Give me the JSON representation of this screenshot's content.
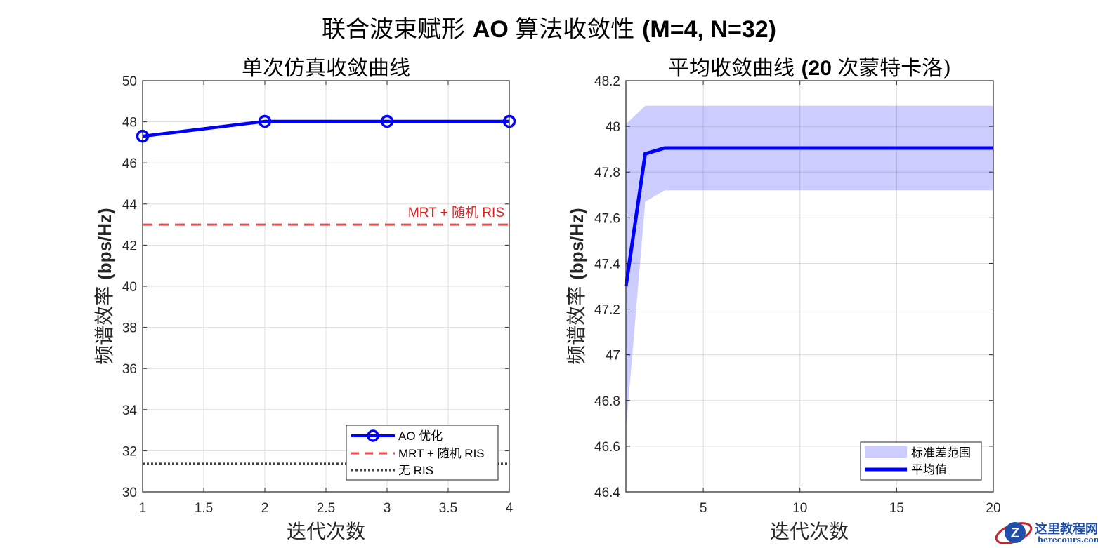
{
  "figure": {
    "title_cjk_prefix": "联合波束赋形 ",
    "title_bold": "AO ",
    "title_cjk_mid": "算法收敛性 ",
    "title_bold_suffix": "(M=4, N=32)"
  },
  "left_plot": {
    "title": "单次仿真收敛曲线",
    "xlabel": "迭代次数",
    "ylabel_cjk": "频谱效率 ",
    "ylabel_unit": "(bps/Hz)",
    "annotation": "MRT + 随机 RIS",
    "xticks": [
      "1",
      "1.5",
      "2",
      "2.5",
      "3",
      "3.5",
      "4"
    ],
    "yticks": [
      "30",
      "32",
      "34",
      "36",
      "38",
      "40",
      "42",
      "44",
      "46",
      "48",
      "50"
    ],
    "legend": {
      "items": [
        {
          "label": "AO 优化"
        },
        {
          "label": "MRT + 随机 RIS"
        },
        {
          "label": "无 RIS"
        }
      ]
    }
  },
  "right_plot": {
    "title_cjk": "平均收敛曲线 ",
    "title_bold": "(20 ",
    "title_cjk2": "次蒙特卡洛)",
    "xlabel": "迭代次数",
    "ylabel_cjk": "频谱效率 ",
    "ylabel_unit": "(bps/Hz)",
    "xticks": [
      "5",
      "10",
      "15",
      "20"
    ],
    "yticks": [
      "46.4",
      "46.6",
      "46.8",
      "47",
      "47.2",
      "47.4",
      "47.6",
      "47.8",
      "48",
      "48.2"
    ],
    "legend": {
      "items": [
        {
          "label": "标准差范围"
        },
        {
          "label": "平均值"
        }
      ]
    }
  },
  "watermark": {
    "name": "这里教程网",
    "url_text": "herecours.com"
  },
  "colors": {
    "ao_line": "#0000ff",
    "mrt_line": "#f04848",
    "no_ris_line": "#404040",
    "band_fill": "#ccccff",
    "mean_line": "#0000ff",
    "grid": "#dfdfdf"
  },
  "chart_data": [
    {
      "type": "line",
      "title": "单次仿真收敛曲线",
      "xlabel": "迭代次数",
      "ylabel": "频谱效率 (bps/Hz)",
      "xlim": [
        1,
        4
      ],
      "ylim": [
        30,
        50
      ],
      "grid": true,
      "legend_position": "lower right",
      "series": [
        {
          "name": "AO 优化",
          "x": [
            1,
            2,
            3,
            4
          ],
          "values": [
            47.3,
            48.02,
            48.02,
            48.02
          ],
          "style": "solid, circle markers"
        },
        {
          "name": "MRT + 随机 RIS",
          "x": [
            1,
            4
          ],
          "values": [
            43.0,
            43.0
          ],
          "style": "dashed"
        },
        {
          "name": "无 RIS",
          "x": [
            1,
            4
          ],
          "values": [
            31.37,
            31.37
          ],
          "style": "dotted"
        }
      ],
      "annotations": [
        "MRT + 随机 RIS"
      ]
    },
    {
      "type": "area",
      "title": "平均收敛曲线 (20 次蒙特卡洛)",
      "xlabel": "迭代次数",
      "ylabel": "频谱效率 (bps/Hz)",
      "xlim": [
        1,
        20
      ],
      "ylim": [
        46.4,
        48.2
      ],
      "grid": true,
      "legend_position": "lower right",
      "x": [
        1,
        2,
        3,
        4,
        5,
        6,
        7,
        8,
        9,
        10,
        11,
        12,
        13,
        14,
        15,
        16,
        17,
        18,
        19,
        20
      ],
      "series": [
        {
          "name": "平均值",
          "values": [
            47.3,
            47.88,
            47.905,
            47.905,
            47.905,
            47.905,
            47.905,
            47.905,
            47.905,
            47.905,
            47.905,
            47.905,
            47.905,
            47.905,
            47.905,
            47.905,
            47.905,
            47.905,
            47.905,
            47.905
          ]
        },
        {
          "name": "标准差范围 (upper)",
          "values": [
            48.01,
            48.09,
            48.09,
            48.09,
            48.09,
            48.09,
            48.09,
            48.09,
            48.09,
            48.09,
            48.09,
            48.09,
            48.09,
            48.09,
            48.09,
            48.09,
            48.09,
            48.09,
            48.09,
            48.09
          ]
        },
        {
          "name": "标准差范围 (lower)",
          "values": [
            46.67,
            47.67,
            47.72,
            47.72,
            47.72,
            47.72,
            47.72,
            47.72,
            47.72,
            47.72,
            47.72,
            47.72,
            47.72,
            47.72,
            47.72,
            47.72,
            47.72,
            47.72,
            47.72,
            47.72
          ]
        }
      ]
    }
  ]
}
